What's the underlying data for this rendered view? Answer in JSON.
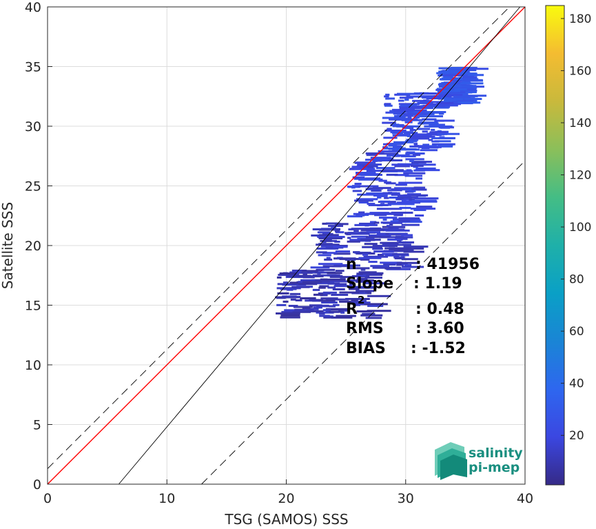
{
  "chart_data": {
    "type": "heatmap",
    "xlabel": "TSG (SAMOS) SSS",
    "ylabel": "Satellite SSS",
    "xlim": [
      0,
      40
    ],
    "ylim": [
      0,
      40
    ],
    "x_ticks": [
      0,
      10,
      20,
      30,
      40
    ],
    "y_ticks": [
      0,
      5,
      10,
      15,
      20,
      25,
      30,
      35,
      40
    ],
    "grid": true,
    "colormap": "parula",
    "colorbar": {
      "min": 1,
      "max": 185,
      "ticks": [
        20,
        40,
        60,
        80,
        100,
        120,
        140,
        160,
        180
      ]
    },
    "reference_lines": [
      {
        "name": "",
        "slope": 1,
        "intercept": 0,
        "color": "#ff0000",
        "style": "solid"
      },
      {
        "name": "",
        "slope": 1.19,
        "intercept": -7.1,
        "color": "#000000",
        "style": "solid"
      },
      {
        "name": "",
        "slope": 1,
        "intercept": 1.3,
        "color": "#000000",
        "style": "dashed"
      },
      {
        "name": "",
        "slope": 1,
        "intercept": -12.9,
        "color": "#000000",
        "style": "dashed"
      }
    ],
    "density_regions": [
      {
        "x": [
          32.5,
          35
        ],
        "y": [
          32,
          35
        ],
        "level": 22
      },
      {
        "x": [
          28,
          33
        ],
        "y": [
          28,
          33
        ],
        "level": 18
      },
      {
        "x": [
          25,
          31
        ],
        "y": [
          22,
          28
        ],
        "level": 14
      },
      {
        "x": [
          22,
          30
        ],
        "y": [
          18,
          22
        ],
        "level": 8
      },
      {
        "x": [
          19,
          27
        ],
        "y": [
          14,
          18
        ],
        "level": 5
      }
    ],
    "stats": [
      {
        "label": "n",
        "sup": "",
        "value": ": 41956"
      },
      {
        "label": "Slope",
        "sup": "",
        "value": ": 1.19"
      },
      {
        "label": "R",
        "sup": "2",
        "value": ": 0.48"
      },
      {
        "label": "RMS",
        "sup": "",
        "value": ": 3.60"
      },
      {
        "label": "BIAS",
        "sup": "",
        "value": ": -1.52"
      }
    ]
  },
  "logo": {
    "line1": "salinity",
    "line2": "pi-mep"
  }
}
